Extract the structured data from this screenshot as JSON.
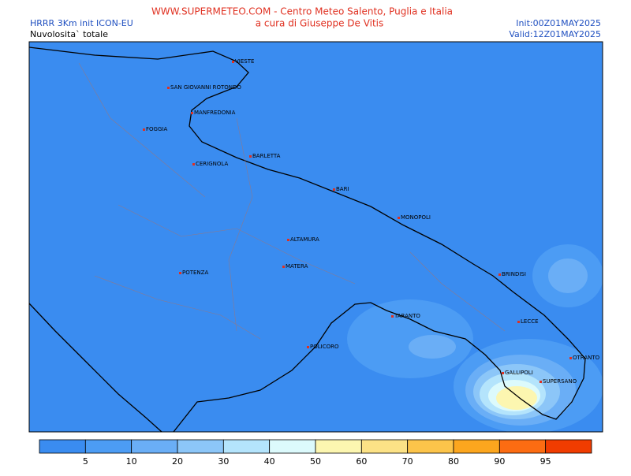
{
  "header": {
    "site": "WWW.SUPERMETEO.COM - Centro Meteo Salento, Puglia e Italia",
    "author": "a cura di Giuseppe De Vitis",
    "model": "HRRR 3Km init ICON-EU",
    "variable": "Nuvolosita` totale",
    "init": "Init:00Z01MAY2025",
    "valid": "Valid:12Z01MAY2025"
  },
  "cities": [
    "VIESTE",
    "SAN GIOVANNI ROTONDO",
    "MANFREDONIA",
    "FOGGIA",
    "BARLETTA",
    "CERIGNOLA",
    "BARI",
    "MONOPOLI",
    "ALTAMURA",
    "MATERA",
    "BRINDISI",
    "POTENZA",
    "TARANTO",
    "LECCE",
    "POLICORO",
    "OTRANTO",
    "GALLIPOLI",
    "SUPERSANO"
  ],
  "legend": {
    "colors": [
      "#3a8cf0",
      "#4c9cf4",
      "#6aaef6",
      "#8cc6f8",
      "#b4e4fc",
      "#dcfafc",
      "#fcf6b0",
      "#fce286",
      "#fcc44a",
      "#fca61e",
      "#fc6c12",
      "#f03c00"
    ],
    "labels": [
      "5",
      "10",
      "20",
      "30",
      "40",
      "50",
      "60",
      "70",
      "80",
      "90",
      "95"
    ]
  }
}
